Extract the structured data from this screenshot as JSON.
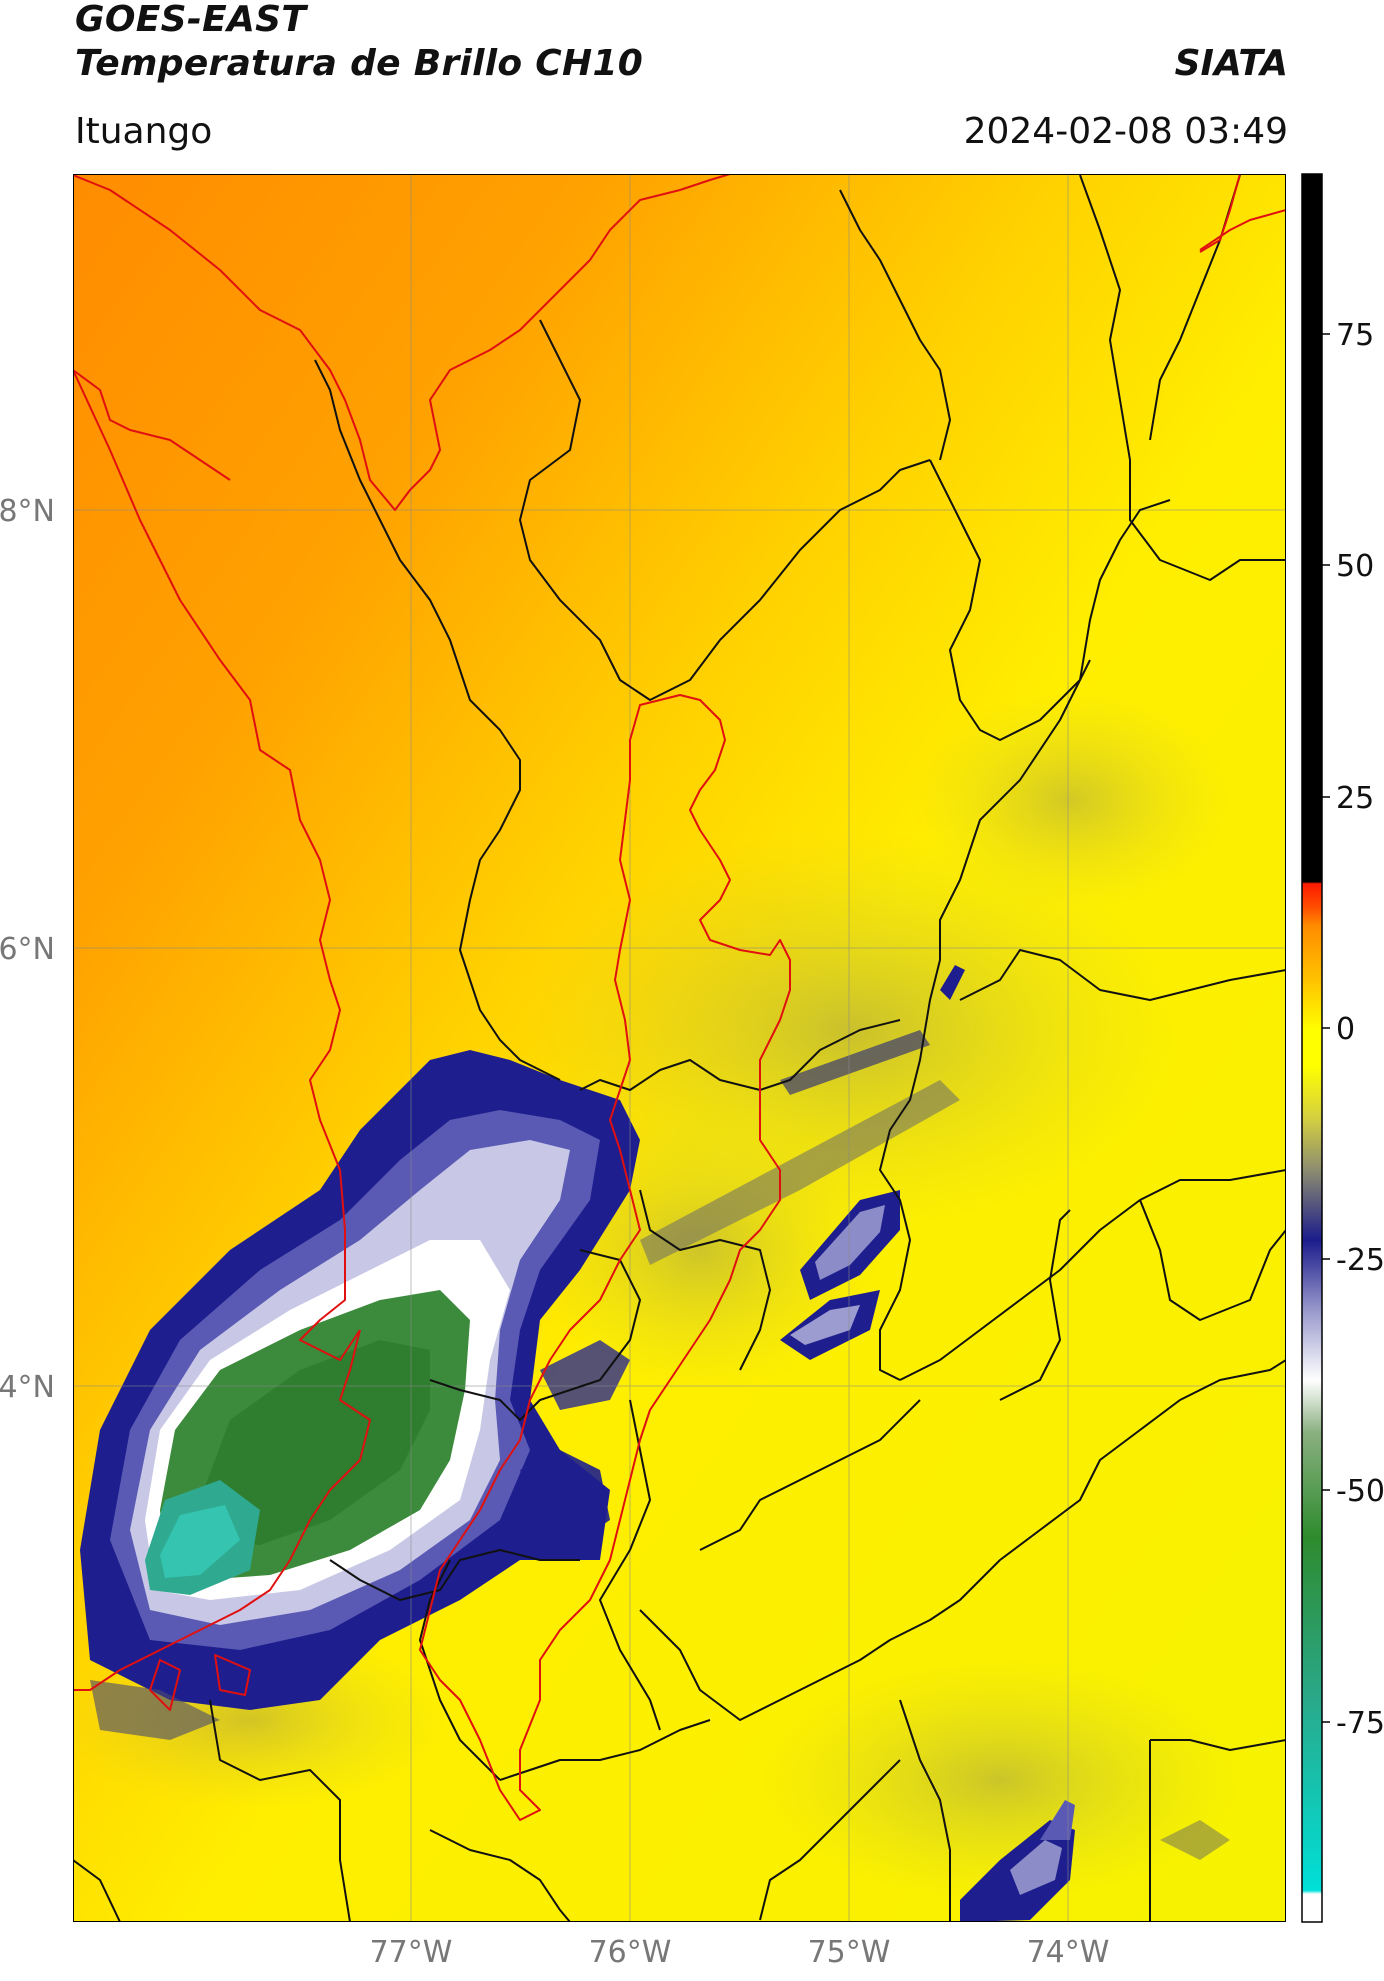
{
  "header": {
    "satellite": "GOES-EAST",
    "product": "Temperatura de Brillo CH10",
    "organization": "SIATA",
    "region": "Ituango",
    "datetime": "2024-02-08 03:49"
  },
  "map": {
    "lat_ticks": [
      "8°N",
      "6°N",
      "4°N"
    ],
    "lon_ticks": [
      "77°W",
      "76°W",
      "75°W",
      "74°W"
    ]
  },
  "colorbar": {
    "tick_labels": [
      "75",
      "50",
      "25",
      "0",
      "-25",
      "-50",
      "-75"
    ],
    "colors": {
      "black": "#000000",
      "red": "#ff1a00",
      "orange": "#ff8c00",
      "yellow": "#ffff00",
      "olive": "#a8a43c",
      "navy": "#1c1c8c",
      "white": "#ffffff",
      "green": "#2e8b2e",
      "cyan": "#00e0d8"
    }
  }
}
